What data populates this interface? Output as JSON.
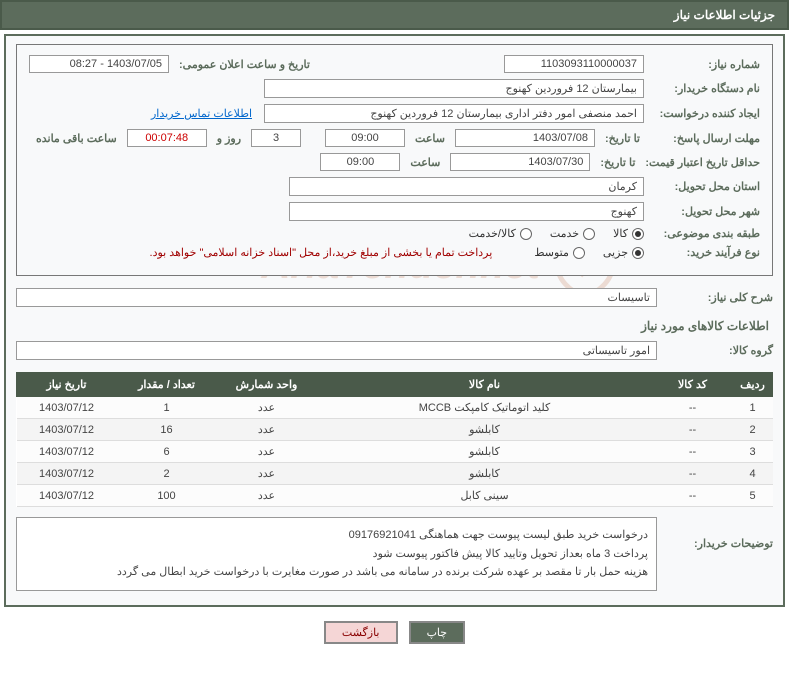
{
  "title": "جزئیات اطلاعات نیاز",
  "labels": {
    "need_no": "شماره نیاز:",
    "announce": "تاریخ و ساعت اعلان عمومی:",
    "buyer_org": "نام دستگاه خریدار:",
    "requester": "ایجاد کننده درخواست:",
    "contact_link": "اطلاعات تماس خریدار",
    "deadline": "مهلت ارسال پاسخ:",
    "until": "تا تاریخ:",
    "hour": "ساعت",
    "days_and": "روز و",
    "remaining": "ساعت باقی مانده",
    "min_validity": "حداقل تاریخ اعتبار قیمت:",
    "province": "استان محل تحویل:",
    "city": "شهر محل تحویل:",
    "category": "طبقه بندی موضوعی:",
    "process_type": "نوع فرآیند خرید:",
    "process_note": "پرداخت تمام یا بخشی از مبلغ خرید،از محل \"اسناد خزانه اسلامی\" خواهد بود.",
    "need_desc": "شرح کلی نیاز:",
    "goods_info": "اطلاعات کالاهای مورد نیاز",
    "goods_group": "گروه کالا:",
    "buyer_notes": "توضیحات خریدار:"
  },
  "values": {
    "need_no": "1103093110000037",
    "announce": "1403/07/05 - 08:27",
    "buyer_org": "بیمارستان 12 فروردین کهنوج",
    "requester": "احمد منصفی امور دفتر اداری بیمارستان 12 فروردین کهنوج",
    "deadline_until_date": "1403/07/08",
    "deadline_until_hour": "09:00",
    "remaining_days": "3",
    "remaining_time": "00:07:48",
    "validity_date": "1403/07/30",
    "validity_hour": "09:00",
    "province": "کرمان",
    "city": "کهنوج",
    "need_desc": "تاسیسات",
    "goods_group": "امور تاسیساتی"
  },
  "category_options": {
    "goods": "کالا",
    "service": "خدمت",
    "goods_service": "کالا/خدمت"
  },
  "process_options": {
    "partial": "جزیی",
    "medium": "متوسط"
  },
  "table": {
    "headers": {
      "idx": "ردیف",
      "code": "کد کالا",
      "name": "نام کالا",
      "unit": "واحد شمارش",
      "qty": "تعداد / مقدار",
      "date": "تاریخ نیاز"
    },
    "rows": [
      {
        "idx": "1",
        "code": "--",
        "name": "کلید اتوماتیک کامپکت MCCB",
        "unit": "عدد",
        "qty": "1",
        "date": "1403/07/12"
      },
      {
        "idx": "2",
        "code": "--",
        "name": "کابلشو",
        "unit": "عدد",
        "qty": "16",
        "date": "1403/07/12"
      },
      {
        "idx": "3",
        "code": "--",
        "name": "کابلشو",
        "unit": "عدد",
        "qty": "6",
        "date": "1403/07/12"
      },
      {
        "idx": "4",
        "code": "--",
        "name": "کابلشو",
        "unit": "عدد",
        "qty": "2",
        "date": "1403/07/12"
      },
      {
        "idx": "5",
        "code": "--",
        "name": "سینی کابل",
        "unit": "عدد",
        "qty": "100",
        "date": "1403/07/12"
      }
    ]
  },
  "buyer_notes": {
    "l1": "درخواست خرید طبق لیست پیوست جهت هماهنگی 09176921041",
    "l2": "پرداخت 3 ماه بعداز تحویل وتایید کالا پیش فاکتور پیوست شود",
    "l3": "هزینه حمل بار تا مقصد بر عهده شرکت برنده در سامانه می باشد در صورت مغایرت با درخواست خرید ابطال می گردد"
  },
  "buttons": {
    "print": "چاپ",
    "back": "بازگشت"
  },
  "watermark": "AriaTender.net",
  "colors": {
    "header_bg": "#5c6c5c",
    "border": "#5c6c5c",
    "link": "#0066cc"
  }
}
